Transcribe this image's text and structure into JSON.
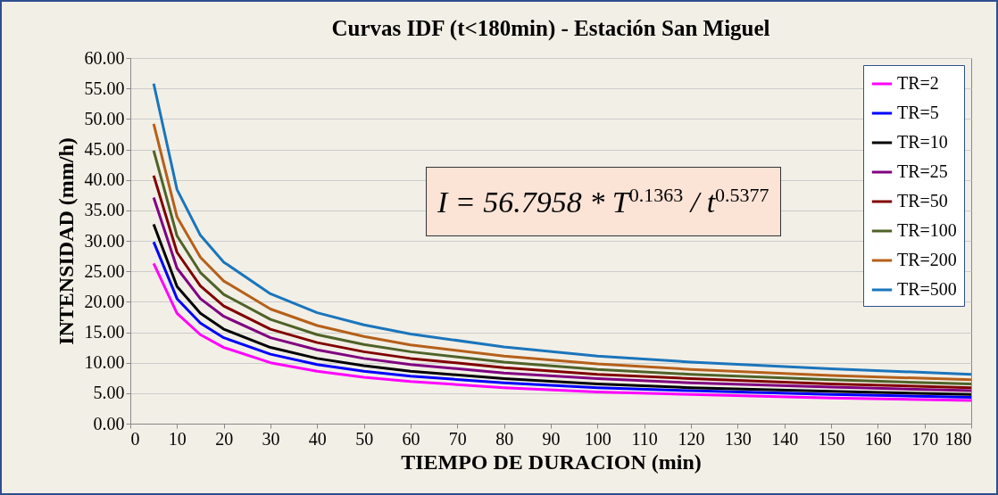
{
  "chart_data": {
    "type": "line",
    "title": "Curvas IDF (t<180min) - Estación San Miguel",
    "xlabel": "TIEMPO DE DURACION (min)",
    "ylabel": "INTENSIDAD (mm/h)",
    "x": [
      5,
      10,
      15,
      20,
      30,
      40,
      50,
      60,
      80,
      100,
      120,
      150,
      180
    ],
    "series": [
      {
        "name": "TR=2",
        "color": "#ff00ff",
        "values": [
          26.3,
          18.1,
          14.6,
          12.5,
          10.0,
          8.6,
          7.6,
          6.9,
          5.9,
          5.2,
          4.8,
          4.2,
          3.8
        ]
      },
      {
        "name": "TR=5",
        "color": "#0000ff",
        "values": [
          29.8,
          20.5,
          16.5,
          14.1,
          11.4,
          9.7,
          8.6,
          7.8,
          6.7,
          5.9,
          5.4,
          4.8,
          4.3
        ]
      },
      {
        "name": "TR=10",
        "color": "#000000",
        "values": [
          32.7,
          22.5,
          18.1,
          15.5,
          12.5,
          10.7,
          9.5,
          8.6,
          7.4,
          6.5,
          5.9,
          5.3,
          4.8
        ]
      },
      {
        "name": "TR=25",
        "color": "#800080",
        "values": [
          37.1,
          25.5,
          20.5,
          17.6,
          14.1,
          12.1,
          10.7,
          9.7,
          8.3,
          7.4,
          6.7,
          6.0,
          5.4
        ]
      },
      {
        "name": "TR=50",
        "color": "#800000",
        "values": [
          40.7,
          28.1,
          22.6,
          19.3,
          15.5,
          13.3,
          11.8,
          10.7,
          9.2,
          8.1,
          7.4,
          6.5,
          5.9
        ]
      },
      {
        "name": "TR=100",
        "color": "#4f6228",
        "values": [
          44.8,
          30.8,
          24.8,
          21.2,
          17.1,
          14.6,
          13.0,
          11.8,
          10.1,
          8.9,
          8.1,
          7.2,
          6.5
        ]
      },
      {
        "name": "TR=200",
        "color": "#b5601a",
        "values": [
          49.2,
          33.9,
          27.3,
          23.4,
          18.8,
          16.1,
          14.3,
          12.9,
          11.1,
          9.8,
          8.9,
          7.9,
          7.2
        ]
      },
      {
        "name": "TR=500",
        "color": "#1a75bc",
        "values": [
          55.8,
          38.4,
          30.9,
          26.5,
          21.3,
          18.2,
          16.2,
          14.7,
          12.6,
          11.1,
          10.1,
          9.0,
          8.1
        ]
      }
    ],
    "xlim": [
      0,
      180
    ],
    "xticks": [
      0,
      10,
      20,
      30,
      40,
      50,
      60,
      70,
      80,
      90,
      100,
      110,
      120,
      130,
      140,
      150,
      160,
      170,
      180
    ],
    "ylim": [
      0,
      60
    ],
    "yticks": [
      {
        "value": 0,
        "label": "0.00"
      },
      {
        "value": 5,
        "label": "5.00"
      },
      {
        "value": 10,
        "label": "10.00"
      },
      {
        "value": 15,
        "label": "15.00"
      },
      {
        "value": 20,
        "label": "20.00"
      },
      {
        "value": 25,
        "label": "25.00"
      },
      {
        "value": 30,
        "label": "30.00"
      },
      {
        "value": 35,
        "label": "35.00"
      },
      {
        "value": 40,
        "label": "40.00"
      },
      {
        "value": 45,
        "label": "45.00"
      },
      {
        "value": 50,
        "label": "50.00"
      },
      {
        "value": 55,
        "label": "55.00"
      },
      {
        "value": 60,
        "label": "60.00"
      }
    ],
    "grid": "y",
    "legend": "top right",
    "marker": "none",
    "line_style": "solid",
    "annotations": [
      "I = 56.7958 * T$^{0.1363}$ / t$^{0.5377}$"
    ]
  }
}
